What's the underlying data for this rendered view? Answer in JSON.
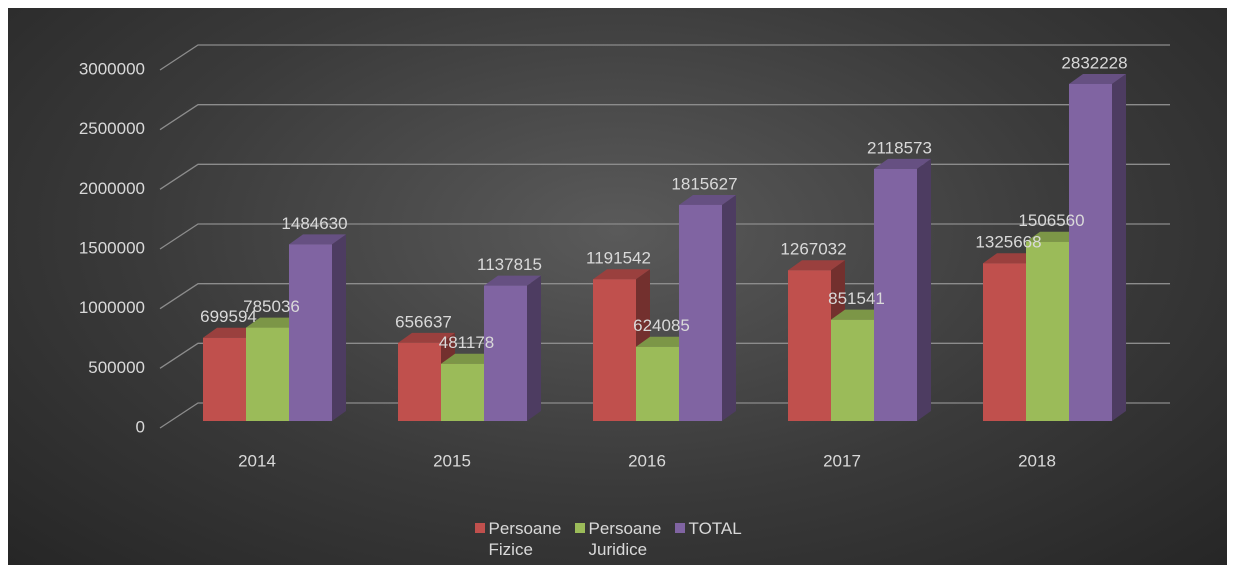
{
  "chart_data": {
    "type": "bar3d",
    "categories": [
      "2014",
      "2015",
      "2016",
      "2017",
      "2018"
    ],
    "series": [
      {
        "name": "Persoane Fizice",
        "color": "#c0504d",
        "values": [
          699594,
          656637,
          1191542,
          1267032,
          1325668
        ]
      },
      {
        "name": "Persoane Juridice",
        "color": "#9bbb59",
        "values": [
          785036,
          481178,
          624085,
          851541,
          1506560
        ]
      },
      {
        "name": "TOTAL",
        "color": "#8064a2",
        "values": [
          1484630,
          1137815,
          1815627,
          2118573,
          2832228
        ]
      }
    ],
    "ylim": [
      0,
      3000000
    ],
    "yticks": [
      0,
      500000,
      1000000,
      1500000,
      2000000,
      2500000,
      3000000
    ],
    "grid": true,
    "legend": "bottom"
  }
}
